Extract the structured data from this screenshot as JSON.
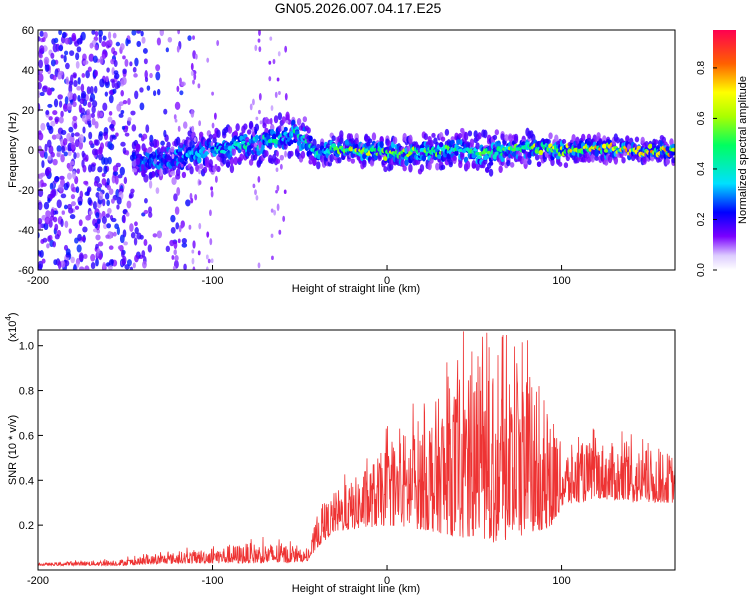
{
  "title": "GN05.2026.007.04.17.E25",
  "chart_data": [
    {
      "type": "heatmap",
      "xlabel": "Height of straight line (km)",
      "ylabel": "Frequency (Hz)",
      "xlim": [
        -200,
        165
      ],
      "ylim": [
        -60,
        60
      ],
      "x_ticks": [
        -200,
        -100,
        0,
        100
      ],
      "y_ticks": [
        -60,
        -40,
        -20,
        0,
        20,
        40,
        60
      ],
      "colorbar": {
        "label": "Normalized spectral amplitude",
        "range": [
          0,
          0.95
        ],
        "ticks": [
          "0.0",
          "0.2",
          "0.4",
          "0.6",
          "0.8"
        ]
      },
      "ridge": {
        "description": "spectral ridge centred near 0 Hz",
        "x": [
          -140,
          -120,
          -100,
          -80,
          -60,
          -50,
          -40,
          -30,
          -20,
          0,
          20,
          40,
          60,
          80,
          100,
          120,
          140,
          165
        ],
        "center_hz": [
          -5,
          -4,
          0,
          3,
          6,
          8,
          -2,
          1,
          0,
          -2,
          -1,
          0,
          -2,
          1,
          0,
          1,
          0,
          0
        ],
        "halfwidth_hz": [
          8,
          9,
          9,
          9,
          10,
          10,
          7,
          6,
          6,
          7,
          8,
          8,
          9,
          7,
          6,
          6,
          5,
          5
        ],
        "peak_amp": [
          0.3,
          0.35,
          0.45,
          0.5,
          0.55,
          0.5,
          0.5,
          0.6,
          0.7,
          0.75,
          0.65,
          0.6,
          0.6,
          0.7,
          0.8,
          0.85,
          0.85,
          0.85
        ]
      },
      "noise_region_x": [
        -200,
        -140
      ]
    },
    {
      "type": "line",
      "xlabel": "Height of straight line (km)",
      "ylabel": "SNR (10 * v/v)",
      "y_scale_label": "(x10",
      "y_scale_exp": "4",
      "y_scale_close": ")",
      "xlim": [
        -200,
        165
      ],
      "ylim": [
        0,
        1.07
      ],
      "x_ticks": [
        -200,
        -100,
        0,
        100
      ],
      "y_ticks": [
        0.2,
        0.4,
        0.6,
        0.8,
        1.0
      ],
      "color": "#ee3333",
      "envelope": {
        "x": [
          -200,
          -150,
          -120,
          -100,
          -80,
          -60,
          -45,
          -40,
          -30,
          -20,
          0,
          20,
          40,
          60,
          80,
          95,
          100,
          120,
          140,
          165
        ],
        "base": [
          0.02,
          0.02,
          0.03,
          0.03,
          0.03,
          0.03,
          0.04,
          0.1,
          0.17,
          0.18,
          0.2,
          0.18,
          0.15,
          0.12,
          0.15,
          0.2,
          0.28,
          0.32,
          0.3,
          0.3
        ],
        "upper": [
          0.03,
          0.05,
          0.08,
          0.1,
          0.12,
          0.12,
          0.08,
          0.25,
          0.35,
          0.4,
          0.55,
          0.7,
          0.85,
          0.95,
          0.9,
          0.7,
          0.55,
          0.58,
          0.55,
          0.52
        ]
      }
    }
  ]
}
